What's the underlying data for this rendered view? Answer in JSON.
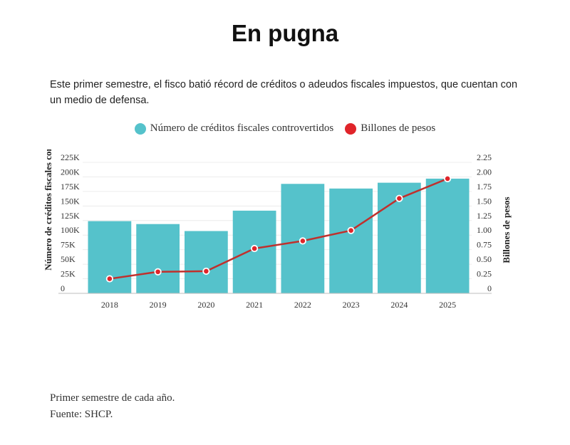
{
  "title": "En pugna",
  "subtitle": "Este primer semestre, el fisco batió récord de créditos o adeudos fiscales impuestos, que cuentan con un medio de defensa.",
  "notes": {
    "line1": "Primer semestre de cada año.",
    "line2": "Fuente: SHCP."
  },
  "colors": {
    "bar": "#55c2cb",
    "line": "#c0302d",
    "point": "#e0242a"
  },
  "chart_data": {
    "type": "bar+line",
    "categories": [
      "2018",
      "2019",
      "2020",
      "2021",
      "2022",
      "2023",
      "2024",
      "2025"
    ],
    "series": [
      {
        "name": "Número de créditos fiscales controvertidos",
        "type": "bar",
        "axis": "left",
        "values": [
          124000,
          119000,
          107000,
          142000,
          188000,
          180000,
          190000,
          197000
        ]
      },
      {
        "name": "Billones de pesos",
        "type": "line",
        "axis": "right",
        "values": [
          0.25,
          0.37,
          0.38,
          0.77,
          0.9,
          1.08,
          1.63,
          1.97
        ]
      }
    ],
    "yleft": {
      "label": "Número de créditos fiscales controvertidos",
      "ticks": [
        "0",
        "25K",
        "50K",
        "75K",
        "100K",
        "125K",
        "150K",
        "175K",
        "200K",
        "225K"
      ],
      "tick_values": [
        0,
        25000,
        50000,
        75000,
        100000,
        125000,
        150000,
        175000,
        200000,
        225000
      ],
      "range": [
        0,
        225000
      ]
    },
    "yright": {
      "label": "Billones de pesos",
      "ticks": [
        "0",
        "0.25",
        "0.50",
        "0.75",
        "1.00",
        "1.25",
        "1.50",
        "1.75",
        "2.00",
        "2.25"
      ],
      "tick_values": [
        0,
        0.25,
        0.5,
        0.75,
        1.0,
        1.25,
        1.5,
        1.75,
        2.0,
        2.25
      ],
      "range": [
        0,
        2.25
      ]
    },
    "legend": "top-center"
  }
}
